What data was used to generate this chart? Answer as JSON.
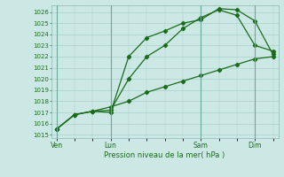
{
  "xlabel": "Pression niveau de la mer( hPa )",
  "ylim": [
    1015,
    1026.5
  ],
  "yticks": [
    1015,
    1016,
    1017,
    1018,
    1019,
    1020,
    1021,
    1022,
    1023,
    1024,
    1025,
    1026
  ],
  "bg_color": "#cce8e4",
  "grid_color": "#aad0cc",
  "line_color": "#1a6b1a",
  "marker_color": "#1a6b1a",
  "xtick_labels": [
    "Ven",
    "Lun",
    "Sam",
    "Dim"
  ],
  "xtick_positions": [
    0,
    3,
    8,
    11
  ],
  "total_points": 13,
  "series1_x": [
    0,
    1,
    2,
    3,
    4,
    5,
    6,
    7,
    8,
    9,
    10,
    11,
    12
  ],
  "series1_y": [
    1015.5,
    1016.8,
    1017.1,
    1017.0,
    1022.0,
    1023.7,
    1024.3,
    1025.0,
    1025.3,
    1026.3,
    1026.2,
    1025.2,
    1022.2
  ],
  "series2_x": [
    0,
    1,
    2,
    3,
    4,
    5,
    6,
    7,
    8,
    9,
    10,
    11,
    12
  ],
  "series2_y": [
    1015.5,
    1016.8,
    1017.1,
    1017.2,
    1020.0,
    1022.0,
    1023.0,
    1024.5,
    1025.5,
    1026.2,
    1025.7,
    1023.0,
    1022.5
  ],
  "series3_x": [
    0,
    1,
    2,
    3,
    4,
    5,
    6,
    7,
    8,
    9,
    10,
    11,
    12
  ],
  "series3_y": [
    1015.5,
    1016.8,
    1017.1,
    1017.5,
    1018.0,
    1018.8,
    1019.3,
    1019.8,
    1020.3,
    1020.8,
    1021.3,
    1021.8,
    1022.0
  ]
}
